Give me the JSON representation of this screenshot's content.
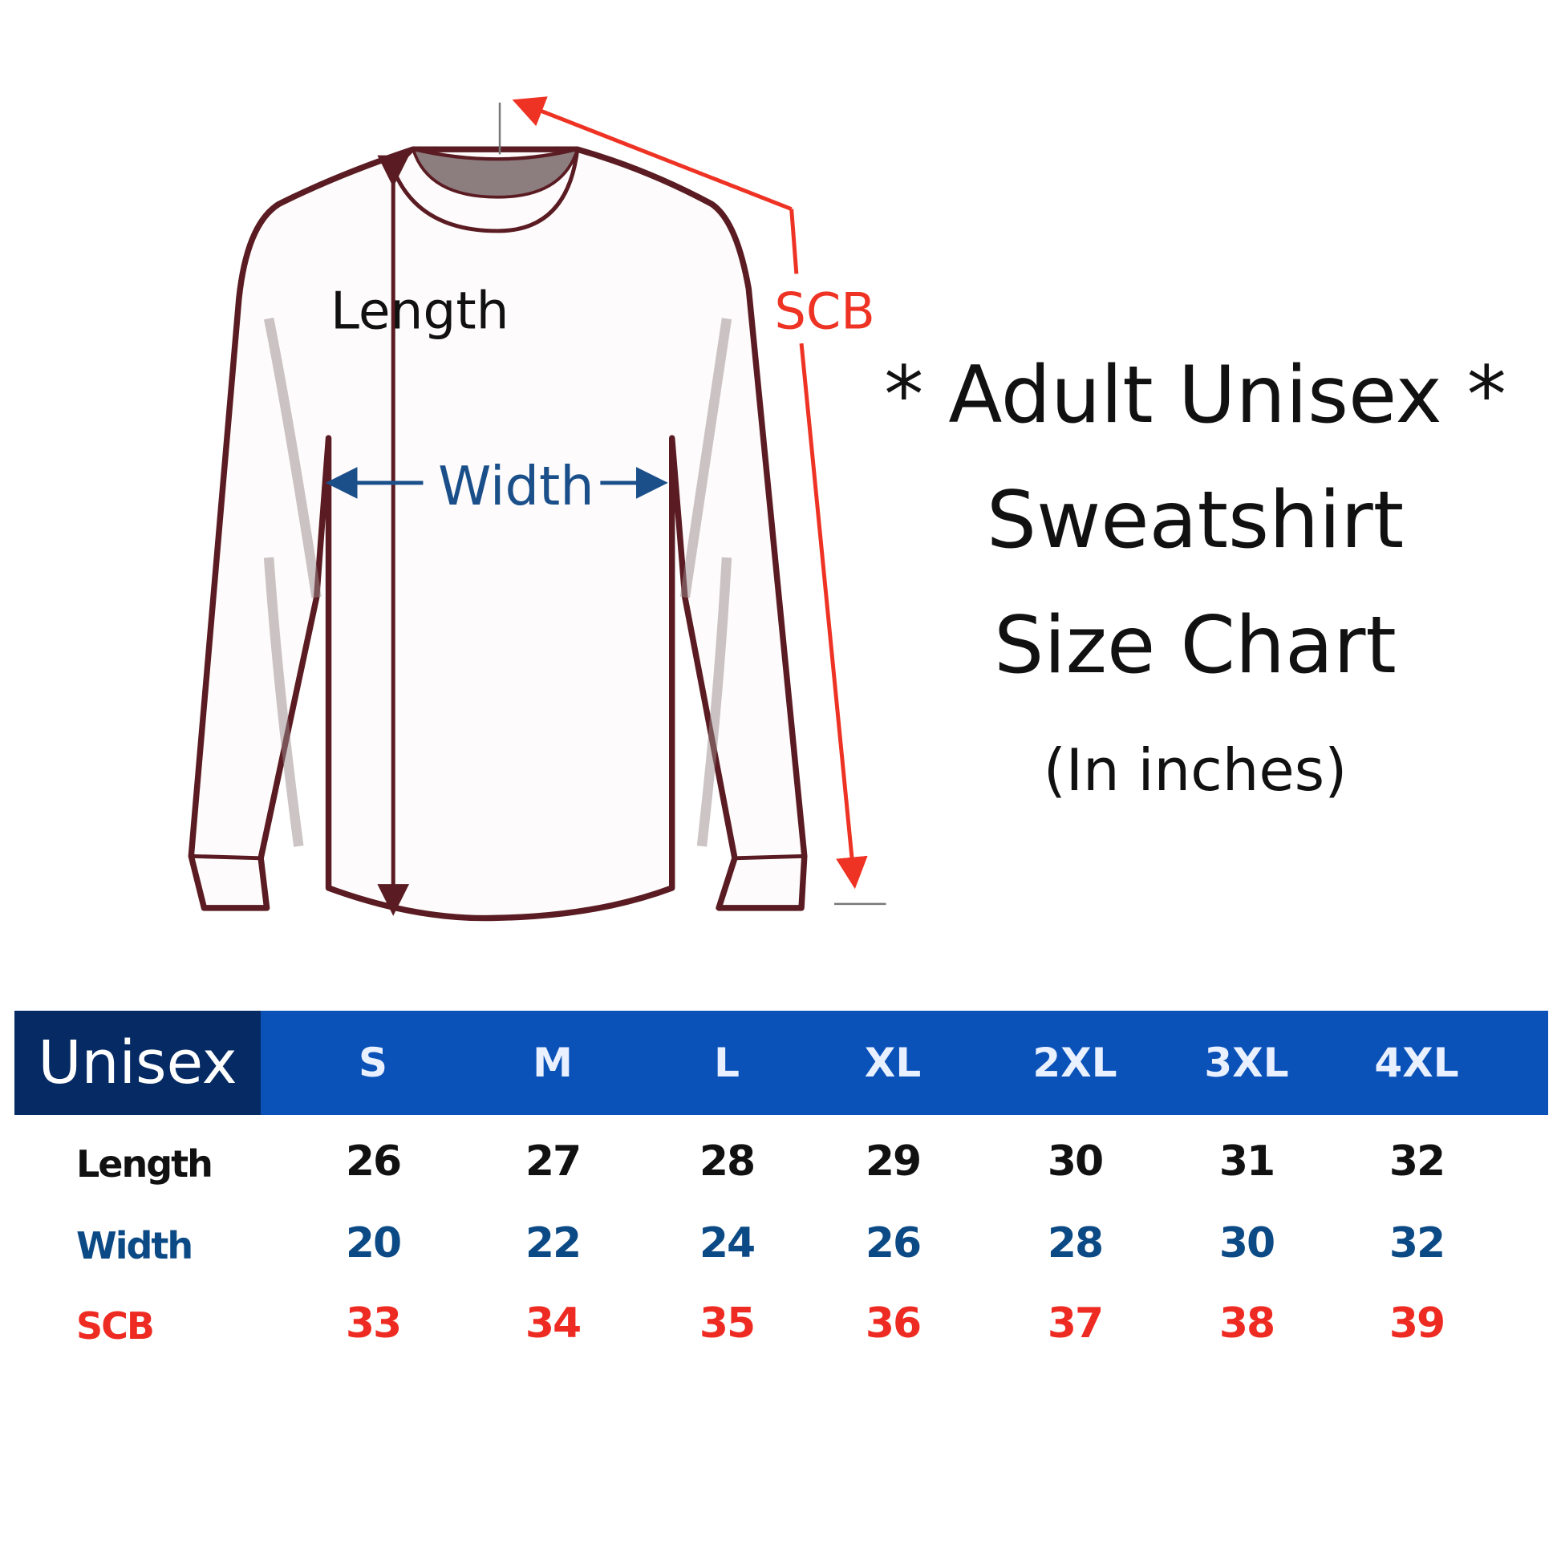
{
  "diagram": {
    "length_label": "Length",
    "width_label": "Width",
    "scb_label": "SCB",
    "colors": {
      "outline": "#5a1c22",
      "width": "#1a4f8a",
      "scb": "#ee3324"
    }
  },
  "title": {
    "line1": "* Adult Unisex *",
    "line2": "Sweatshirt",
    "line3": "Size Chart",
    "unit": "(In inches)"
  },
  "table": {
    "header_label": "Unisex",
    "sizes": [
      "S",
      "M",
      "L",
      "XL",
      "2XL",
      "3XL",
      "4XL"
    ],
    "rows": [
      {
        "label": "Length",
        "color": "#111111",
        "values": [
          "26",
          "27",
          "28",
          "29",
          "30",
          "31",
          "32"
        ]
      },
      {
        "label": "Width",
        "color": "#0c4a86",
        "values": [
          "20",
          "22",
          "24",
          "26",
          "28",
          "30",
          "32"
        ]
      },
      {
        "label": "SCB",
        "color": "#ee2b22",
        "values": [
          "33",
          "34",
          "35",
          "36",
          "37",
          "38",
          "39"
        ]
      }
    ],
    "colors": {
      "header_bg": "#0a52b8",
      "header_label_bg": "#062a63"
    }
  }
}
